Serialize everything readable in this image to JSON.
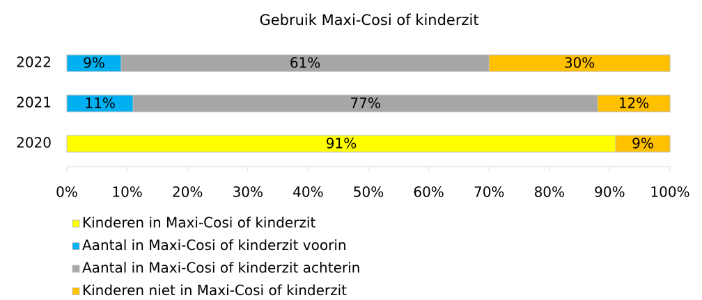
{
  "chart_data": {
    "type": "stacked-bar-horizontal",
    "title": "Gebruik Maxi-Cosi of kinderzit",
    "categories": [
      "2022",
      "2021",
      "2020"
    ],
    "series": [
      {
        "name": "Kinderen in Maxi-Cosi of kinderzit",
        "color": "#ffff00",
        "values": [
          null,
          null,
          91
        ],
        "value_labels": [
          null,
          null,
          "91%"
        ]
      },
      {
        "name": "Aantal in Maxi-Cosi of kinderzit voorin",
        "color": "#00b0f0",
        "values": [
          9,
          11,
          null
        ],
        "value_labels": [
          "9%",
          "11%",
          null
        ]
      },
      {
        "name": "Aantal in Maxi-Cosi of kinderzit achterin",
        "color": "#a6a6a6",
        "values": [
          61,
          77,
          null
        ],
        "value_labels": [
          "61%",
          "77%",
          null
        ]
      },
      {
        "name": "Kinderen niet in Maxi-Cosi of kinderzit",
        "color": "#ffc000",
        "values": [
          30,
          12,
          9
        ],
        "value_labels": [
          "30%",
          "12%",
          "9%"
        ]
      }
    ],
    "xlim": [
      0,
      100
    ],
    "xticks": [
      {
        "value": 0,
        "label": "0%"
      },
      {
        "value": 10,
        "label": "10%"
      },
      {
        "value": 20,
        "label": "20%"
      },
      {
        "value": 30,
        "label": "30%"
      },
      {
        "value": 40,
        "label": "40%"
      },
      {
        "value": 50,
        "label": "50%"
      },
      {
        "value": 60,
        "label": "60%"
      },
      {
        "value": 70,
        "label": "70%"
      },
      {
        "value": 80,
        "label": "80%"
      },
      {
        "value": 90,
        "label": "90%"
      },
      {
        "value": 100,
        "label": "100%"
      }
    ],
    "grid": false,
    "legend": "bottom"
  }
}
